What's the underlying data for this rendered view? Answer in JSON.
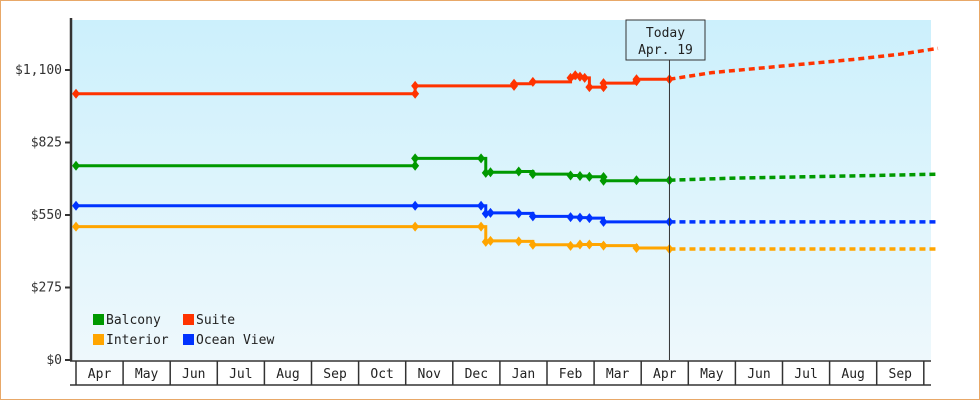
{
  "chart_data": {
    "type": "line",
    "title": "",
    "xlabel": "",
    "ylabel": "",
    "ylim": [
      0,
      1375
    ],
    "y_ticks": [
      "$0",
      "$275",
      "$550",
      "$825",
      "$1,100"
    ],
    "x_ticks": [
      "Apr",
      "May",
      "Jun",
      "Jul",
      "Aug",
      "Sep",
      "Oct",
      "Nov",
      "Dec",
      "Jan",
      "Feb",
      "Mar",
      "Apr",
      "May",
      "Jun",
      "Jul",
      "Aug",
      "Sep"
    ],
    "today_marker": {
      "line1": "Today",
      "line2": "Apr. 19"
    },
    "legend": [
      {
        "name": "Balcony",
        "color": "#009900"
      },
      {
        "name": "Suite",
        "color": "#ff3300"
      },
      {
        "name": "Interior",
        "color": "#ffa500"
      },
      {
        "name": "Ocean View",
        "color": "#0033ff"
      }
    ],
    "series": [
      {
        "name": "Suite",
        "color": "#ff3300",
        "history": [
          [
            0,
            1010
          ],
          [
            7.2,
            1010
          ],
          [
            7.2,
            1040
          ],
          [
            9.3,
            1040
          ],
          [
            9.3,
            1048
          ],
          [
            9.7,
            1055
          ],
          [
            10.5,
            1070
          ],
          [
            10.6,
            1080
          ],
          [
            10.7,
            1075
          ],
          [
            10.8,
            1070
          ],
          [
            10.9,
            1035
          ],
          [
            11.2,
            1035
          ],
          [
            11.2,
            1050
          ],
          [
            11.9,
            1058
          ],
          [
            11.9,
            1065
          ],
          [
            12.6,
            1065
          ]
        ],
        "forecast": [
          [
            12.6,
            1065
          ],
          [
            13.5,
            1090
          ],
          [
            15,
            1115
          ],
          [
            16.5,
            1140
          ],
          [
            17.5,
            1160
          ],
          [
            18.3,
            1182
          ]
        ]
      },
      {
        "name": "Balcony",
        "color": "#009900",
        "history": [
          [
            0,
            737
          ],
          [
            7.2,
            737
          ],
          [
            7.2,
            765
          ],
          [
            8.6,
            765
          ],
          [
            8.7,
            710
          ],
          [
            8.8,
            712
          ],
          [
            9.4,
            715
          ],
          [
            9.7,
            705
          ],
          [
            10.5,
            700
          ],
          [
            10.7,
            698
          ],
          [
            10.9,
            695
          ],
          [
            11.2,
            694
          ],
          [
            11.2,
            680
          ],
          [
            11.9,
            682
          ],
          [
            12.6,
            682
          ]
        ],
        "forecast": [
          [
            12.6,
            682
          ],
          [
            14,
            690
          ],
          [
            15.5,
            695
          ],
          [
            17,
            700
          ],
          [
            18.3,
            705
          ]
        ]
      },
      {
        "name": "Ocean View",
        "color": "#0033ff",
        "history": [
          [
            0,
            585
          ],
          [
            7.2,
            585
          ],
          [
            8.6,
            585
          ],
          [
            8.7,
            555
          ],
          [
            8.8,
            558
          ],
          [
            9.4,
            556
          ],
          [
            9.7,
            545
          ],
          [
            10.5,
            542
          ],
          [
            10.7,
            540
          ],
          [
            10.9,
            538
          ],
          [
            11.2,
            524
          ],
          [
            12.6,
            524
          ]
        ],
        "forecast": [
          [
            12.6,
            524
          ],
          [
            18.3,
            524
          ]
        ]
      },
      {
        "name": "Interior",
        "color": "#ffa500",
        "history": [
          [
            0,
            506
          ],
          [
            7.2,
            506
          ],
          [
            8.6,
            506
          ],
          [
            8.7,
            448
          ],
          [
            8.8,
            452
          ],
          [
            9.4,
            450
          ],
          [
            9.7,
            437
          ],
          [
            10.5,
            433
          ],
          [
            10.7,
            438
          ],
          [
            10.9,
            438
          ],
          [
            11.2,
            434
          ],
          [
            11.9,
            425
          ],
          [
            12.6,
            421
          ]
        ],
        "forecast": [
          [
            12.6,
            421
          ],
          [
            18.3,
            421
          ]
        ]
      }
    ]
  }
}
